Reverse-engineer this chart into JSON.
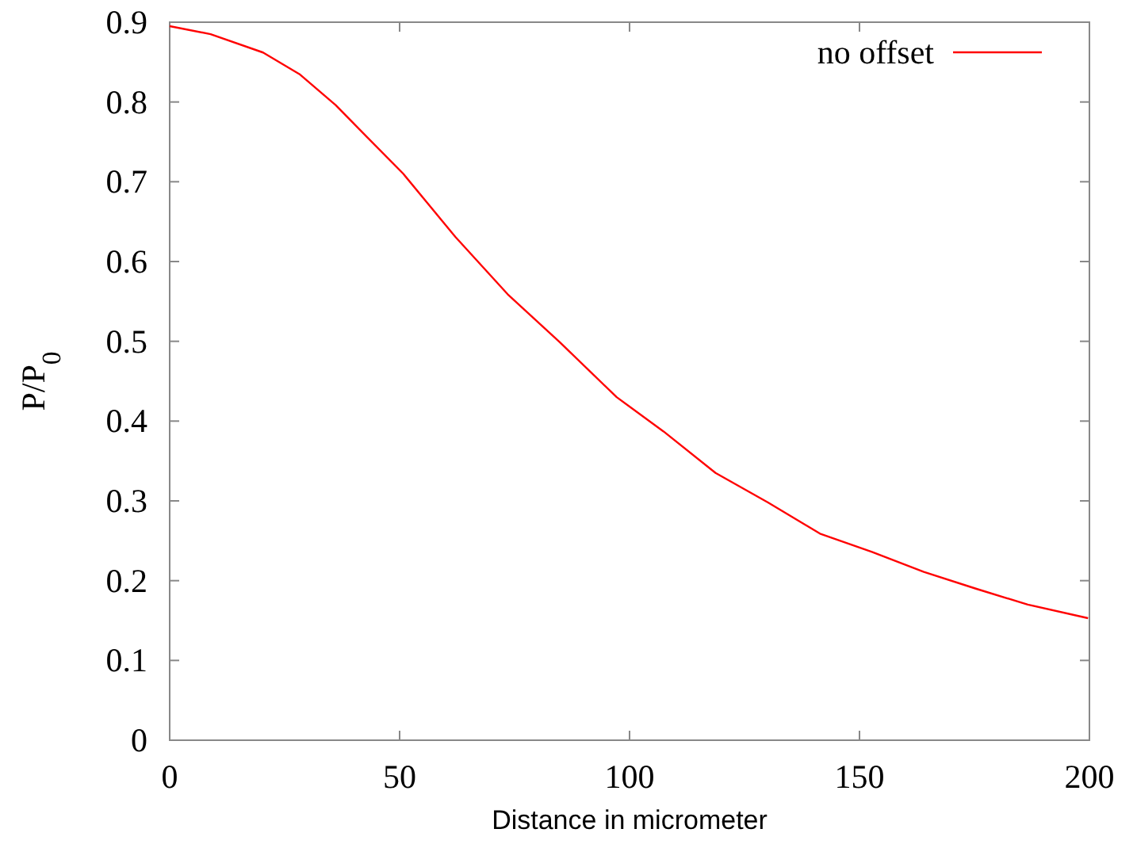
{
  "chart_data": {
    "type": "line",
    "xlabel": "Distance in micrometer",
    "ylabel": "P/P$_{0}$",
    "xlim": [
      0,
      200
    ],
    "ylim": [
      0,
      0.9
    ],
    "xticks": [
      0,
      50,
      100,
      150,
      200
    ],
    "yticks": [
      0,
      0.1,
      0.2,
      0.3,
      0.4,
      0.5,
      0.6,
      0.7,
      0.8,
      0.9
    ],
    "grid": false,
    "legend": "top right",
    "series": [
      {
        "name": "no offset",
        "color": "#ff0000",
        "x": [
          0,
          8.9,
          20.3,
          28.2,
          36.1,
          42.9,
          50.8,
          62.1,
          73.5,
          84.8,
          97.2,
          107.4,
          118.7,
          130.1,
          141.4,
          152.7,
          164,
          175.3,
          186.6,
          199.7
        ],
        "values": [
          0.895,
          0.885,
          0.862,
          0.835,
          0.796,
          0.756,
          0.71,
          0.631,
          0.559,
          0.499,
          0.43,
          0.387,
          0.335,
          0.298,
          0.259,
          0.236,
          0.211,
          0.19,
          0.17,
          0.153
        ]
      }
    ]
  }
}
